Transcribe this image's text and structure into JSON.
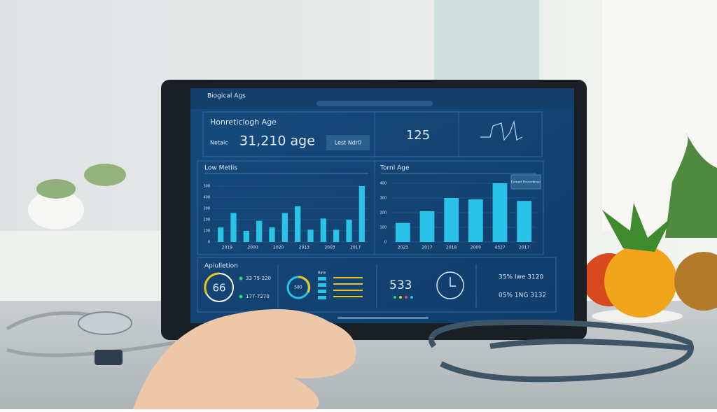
{
  "header": {
    "title": "Biogical Ags"
  },
  "summary": {
    "title": "Honreticlogh Age",
    "label": "Netalc",
    "value": "31,210 age",
    "button": "Lest Ndr0",
    "count": "125"
  },
  "chart_data": [
    {
      "type": "bar",
      "title": "Low Metlis",
      "color": "#29c3e8",
      "categories": [
        "2019",
        null,
        "2000",
        null,
        "2020",
        null,
        "2013",
        null,
        "2003",
        null,
        "2017",
        null
      ],
      "values": [
        130,
        260,
        100,
        190,
        130,
        260,
        320,
        110,
        210,
        110,
        200,
        500
      ],
      "ylim": [
        0,
        500
      ],
      "yticks": [
        0,
        100,
        200,
        300,
        400,
        500
      ],
      "grid": true
    },
    {
      "type": "bar",
      "title": "Tornl Age",
      "color": "#29c3e8",
      "categories": [
        "2023",
        "2017",
        "2018",
        "2009",
        "4327",
        "2017"
      ],
      "values": [
        130,
        210,
        300,
        290,
        400,
        280
      ],
      "ylim": [
        0,
        400
      ],
      "yticks": [
        0,
        100,
        200,
        300,
        400
      ],
      "grid": true,
      "legend": "Estead Procederan"
    }
  ],
  "bottom": {
    "title": "Apiulletion",
    "gauge": "66",
    "line1": "33 75-220",
    "line2": "177-7270",
    "ring": "580",
    "ring_label": "Rate",
    "metric": "533",
    "stat1": "35% Iwe 3120",
    "stat2": "05% 1NG 3132"
  }
}
